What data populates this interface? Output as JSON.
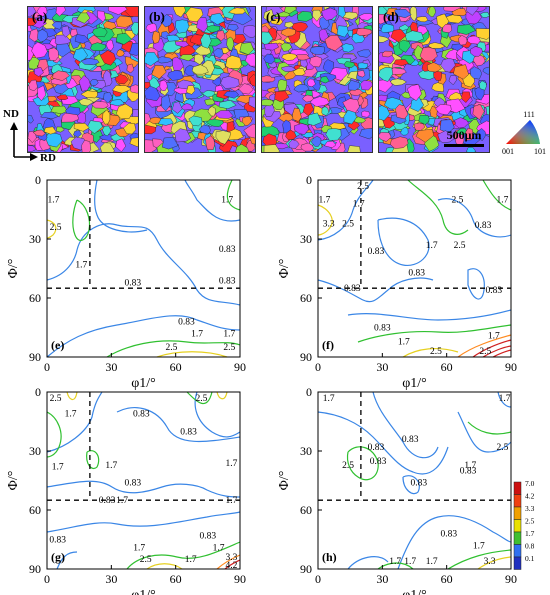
{
  "ebsd_maps": [
    {
      "label": "(a)",
      "seed": 11
    },
    {
      "label": "(b)",
      "seed": 23
    },
    {
      "label": "(c)",
      "seed": 37
    },
    {
      "label": "(d)",
      "seed": 51
    }
  ],
  "scale_bar": "500μm",
  "axes_indicator": {
    "vertical": "ND",
    "horizontal": "RD"
  },
  "ipf_key": {
    "top": "111",
    "left": "001",
    "right": "101"
  },
  "odf_panels": [
    {
      "label": "(e)",
      "dashed_phi1": 20,
      "dashed_PHI": 55,
      "contour_labels": [
        {
          "text": "1.7",
          "phi1": 3,
          "PHI": 10
        },
        {
          "text": "2.5",
          "phi1": 4,
          "PHI": 24
        },
        {
          "text": "1.7",
          "phi1": 16,
          "PHI": 43
        },
        {
          "text": "0.83",
          "phi1": 84,
          "PHI": 35
        },
        {
          "text": "0.83",
          "phi1": 84,
          "PHI": 51
        },
        {
          "text": "1.7",
          "phi1": 84,
          "PHI": 10
        },
        {
          "text": "0.83",
          "phi1": 40,
          "PHI": 52
        },
        {
          "text": "0.83",
          "phi1": 65,
          "PHI": 72
        },
        {
          "text": "1.7",
          "phi1": 70,
          "PHI": 78
        },
        {
          "text": "1.7",
          "phi1": 85,
          "PHI": 78
        },
        {
          "text": "2.5",
          "phi1": 58,
          "PHI": 85
        },
        {
          "text": "2.5",
          "phi1": 85,
          "PHI": 85
        }
      ]
    },
    {
      "label": "(f)",
      "dashed_phi1": 20,
      "dashed_PHI": 55,
      "contour_labels": [
        {
          "text": "1.7",
          "phi1": 3,
          "PHI": 10
        },
        {
          "text": "2.5",
          "phi1": 21,
          "PHI": 3
        },
        {
          "text": "2.5",
          "phi1": 65,
          "PHI": 10
        },
        {
          "text": "1.7",
          "phi1": 86,
          "PHI": 10
        },
        {
          "text": "3.3",
          "phi1": 5,
          "PHI": 22
        },
        {
          "text": "2.5",
          "phi1": 14,
          "PHI": 22
        },
        {
          "text": "1.7",
          "phi1": 19,
          "PHI": 12
        },
        {
          "text": "0.83",
          "phi1": 77,
          "PHI": 23
        },
        {
          "text": "1.7",
          "phi1": 53,
          "PHI": 33
        },
        {
          "text": "2.5",
          "phi1": 66,
          "PHI": 33
        },
        {
          "text": "0.83",
          "phi1": 27,
          "PHI": 36
        },
        {
          "text": "0.83",
          "phi1": 46,
          "PHI": 47
        },
        {
          "text": "0.83",
          "phi1": 16,
          "PHI": 55
        },
        {
          "text": "0.83",
          "phi1": 30,
          "PHI": 75
        },
        {
          "text": "0.83",
          "phi1": 82,
          "PHI": 56
        },
        {
          "text": "1.7",
          "phi1": 40,
          "PHI": 82
        },
        {
          "text": "2.5",
          "phi1": 55,
          "PHI": 87
        },
        {
          "text": "1.7",
          "phi1": 82,
          "PHI": 79
        },
        {
          "text": "2.5",
          "phi1": 78,
          "PHI": 87
        }
      ]
    },
    {
      "label": "(g)",
      "dashed_phi1": 20,
      "dashed_PHI": 55,
      "contour_labels": [
        {
          "text": "2.5",
          "phi1": 4,
          "PHI": 3
        },
        {
          "text": "2.5",
          "phi1": 72,
          "PHI": 3
        },
        {
          "text": "1.7",
          "phi1": 11,
          "PHI": 11
        },
        {
          "text": "0.83",
          "phi1": 44,
          "PHI": 11
        },
        {
          "text": "0.83",
          "phi1": 66,
          "PHI": 20
        },
        {
          "text": "1.7",
          "phi1": 5,
          "PHI": 38
        },
        {
          "text": "1.7",
          "phi1": 30,
          "PHI": 37
        },
        {
          "text": "1.7",
          "phi1": 86,
          "PHI": 36
        },
        {
          "text": "0.83",
          "phi1": 40,
          "PHI": 46
        },
        {
          "text": "0.83",
          "phi1": 28,
          "PHI": 55
        },
        {
          "text": "1.7",
          "phi1": 35,
          "PHI": 55
        },
        {
          "text": "1.7",
          "phi1": 86,
          "PHI": 55
        },
        {
          "text": "0.83",
          "phi1": 75,
          "PHI": 73
        },
        {
          "text": "0.83",
          "phi1": 5,
          "PHI": 75
        },
        {
          "text": "1.7",
          "phi1": 43,
          "PHI": 79
        },
        {
          "text": "2.5",
          "phi1": 46,
          "PHI": 85
        },
        {
          "text": "1.7",
          "phi1": 67,
          "PHI": 85
        },
        {
          "text": "1.7",
          "phi1": 80,
          "PHI": 79
        },
        {
          "text": "3.3",
          "phi1": 86,
          "PHI": 84
        },
        {
          "text": "4.2",
          "phi1": 86,
          "PHI": 88
        }
      ]
    },
    {
      "label": "(h)",
      "dashed_phi1": 20,
      "dashed_PHI": 55,
      "contour_labels": [
        {
          "text": "1.7",
          "phi1": 5,
          "PHI": 3
        },
        {
          "text": "1.7",
          "phi1": 87,
          "PHI": 3
        },
        {
          "text": "0.83",
          "phi1": 43,
          "PHI": 24
        },
        {
          "text": "0.83",
          "phi1": 27,
          "PHI": 28
        },
        {
          "text": "0.83",
          "phi1": 28,
          "PHI": 35
        },
        {
          "text": "2.5",
          "phi1": 14,
          "PHI": 37
        },
        {
          "text": "1.7",
          "phi1": 71,
          "PHI": 37
        },
        {
          "text": "2.5",
          "phi1": 86,
          "PHI": 28
        },
        {
          "text": "0.83",
          "phi1": 70,
          "PHI": 40
        },
        {
          "text": "0.83",
          "phi1": 47,
          "PHI": 46
        },
        {
          "text": "0.83",
          "phi1": 61,
          "PHI": 72
        },
        {
          "text": "1.7",
          "phi1": 36,
          "PHI": 86
        },
        {
          "text": "1.7",
          "phi1": 43,
          "PHI": 86
        },
        {
          "text": "1.7",
          "phi1": 53,
          "PHI": 86
        },
        {
          "text": "1.7",
          "phi1": 75,
          "PHI": 78
        },
        {
          "text": "3.3",
          "phi1": 80,
          "PHI": 86
        }
      ]
    }
  ],
  "odf_axes": {
    "xlabel": "φ1/°",
    "ylabel": "Φ/°",
    "xticks": [
      0,
      30,
      60,
      90
    ],
    "yticks": [
      0,
      30,
      60,
      90
    ],
    "xlim": [
      0,
      90
    ],
    "ylim": [
      0,
      90
    ]
  },
  "colorbar": {
    "levels": [
      "7.0",
      "4.2",
      "3.3",
      "2.5",
      "1.7",
      "0.8",
      "0.1"
    ],
    "colors": [
      "#cc1010",
      "#f04010",
      "#f0a000",
      "#e8e000",
      "#40c030",
      "#3070f0",
      "#2030c0"
    ]
  }
}
